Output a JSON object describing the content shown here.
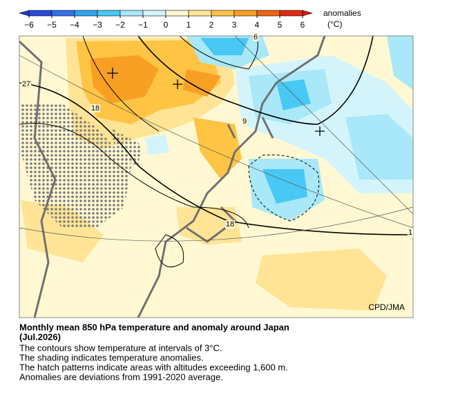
{
  "colorbar": {
    "title": "anomalies",
    "unit": "(°C)",
    "ticks": [
      {
        "value": -6,
        "label": "−6"
      },
      {
        "value": -5,
        "label": "−5"
      },
      {
        "value": -4,
        "label": "−4"
      },
      {
        "value": -3,
        "label": "−3"
      },
      {
        "value": -2,
        "label": "−2"
      },
      {
        "value": -1,
        "label": "−1"
      },
      0,
      1,
      2,
      3,
      4,
      5,
      6
    ],
    "colors": [
      "#2a4ad8",
      "#3470ec",
      "#30a4f0",
      "#48c8f4",
      "#a8e8f8",
      "#d4f4fc",
      "#fff8d2",
      "#ffe496",
      "#ffc444",
      "#f8a024",
      "#f06414",
      "#e02814"
    ],
    "under_color": "#2038c8",
    "over_color": "#d81c10"
  },
  "map": {
    "contour_labels": [
      "27",
      "18",
      "9",
      "18",
      "6",
      "1"
    ],
    "credit": "CPD/JMA"
  },
  "caption": {
    "title": "Monthly mean 850 hPa temperature and anomaly around Japan",
    "date": "(Jul.2026)",
    "lines": [
      "The contours show temperature at intervals of 3°C.",
      "The shading indicates temperature anomalies.",
      "The hatch patterns indicate areas with altitudes exceeding 1,600 m.",
      "Anomalies are deviations from 1991-2020 average."
    ]
  }
}
